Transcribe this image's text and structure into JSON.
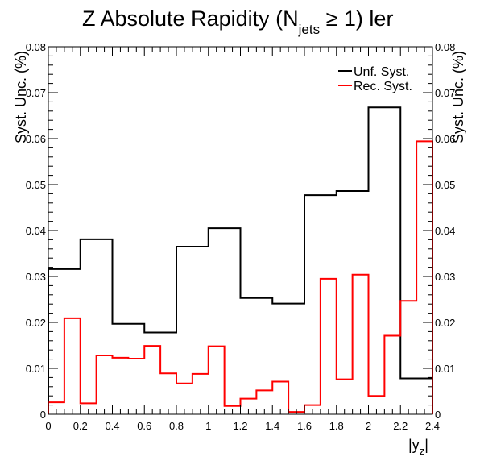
{
  "chart_data": {
    "type": "line",
    "step": true,
    "title_main": "Z Absolute Rapidity (N",
    "title_sub": "jets",
    "title_rest": " ≥ 1) ler",
    "ylabel_left": "Syst. Unc. (%)",
    "ylabel_right": "Syst. Unc. (%)",
    "xlabel_main": "|y",
    "xlabel_sub": "z",
    "xlabel_end": "|",
    "xlim": [
      0,
      2.4
    ],
    "ylim": [
      0,
      0.08
    ],
    "x_ticks": [
      "0",
      "0.2",
      "0.4",
      "0.6",
      "0.8",
      "1",
      "1.2",
      "1.4",
      "1.6",
      "1.8",
      "2",
      "2.2",
      "2.4"
    ],
    "y_ticks": [
      "0",
      "0.01",
      "0.02",
      "0.03",
      "0.04",
      "0.05",
      "0.06",
      "0.07",
      "0.08"
    ],
    "legend_position": "top-right",
    "series": [
      {
        "name": "Unf. Syst.",
        "color": "#000000",
        "bin_edges": [
          0,
          0.2,
          0.4,
          0.6,
          0.8,
          1.0,
          1.2,
          1.4,
          1.6,
          1.8,
          2.0,
          2.2,
          2.4
        ],
        "values": [
          0.0316,
          0.0381,
          0.0197,
          0.0178,
          0.0365,
          0.0405,
          0.0253,
          0.0241,
          0.0477,
          0.0486,
          0.0668,
          0.0078
        ]
      },
      {
        "name": "Rec. Syst.",
        "color": "#ff0000",
        "bin_edges": [
          0,
          0.1,
          0.2,
          0.3,
          0.4,
          0.5,
          0.6,
          0.7,
          0.8,
          0.9,
          1.0,
          1.1,
          1.2,
          1.3,
          1.4,
          1.5,
          1.6,
          1.7,
          1.8,
          1.9,
          2.0,
          2.1,
          2.2,
          2.3,
          2.4
        ],
        "values": [
          0.0026,
          0.0209,
          0.0024,
          0.0128,
          0.0123,
          0.0121,
          0.0149,
          0.0089,
          0.0067,
          0.0088,
          0.0148,
          0.0018,
          0.0034,
          0.0052,
          0.0071,
          0.0005,
          0.002,
          0.0295,
          0.0076,
          0.0304,
          0.004,
          0.0171,
          0.0247,
          0.0594
        ]
      }
    ]
  }
}
